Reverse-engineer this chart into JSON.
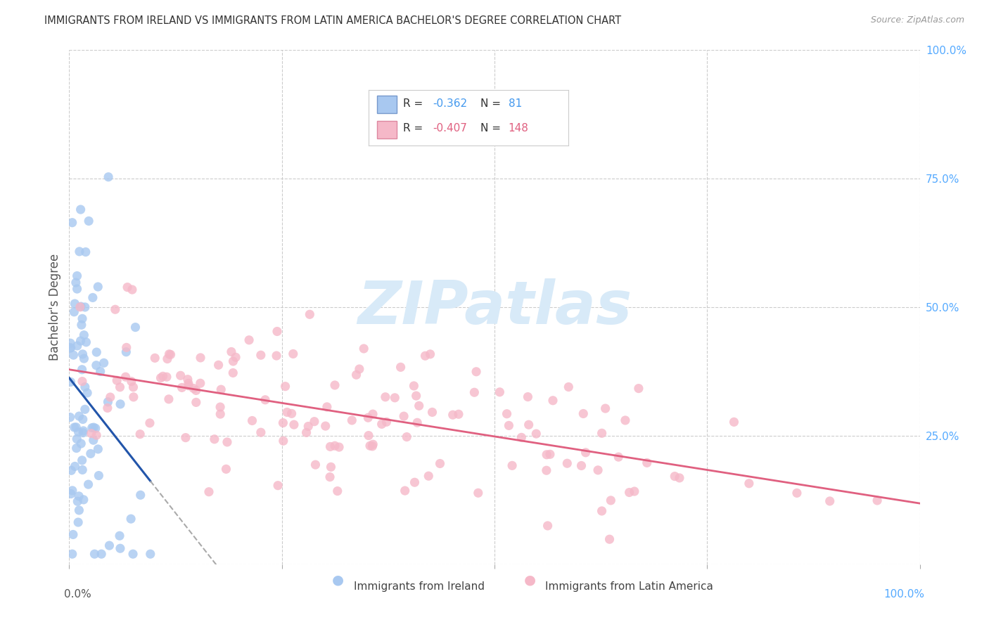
{
  "title": "IMMIGRANTS FROM IRELAND VS IMMIGRANTS FROM LATIN AMERICA BACHELOR'S DEGREE CORRELATION CHART",
  "source": "Source: ZipAtlas.com",
  "ylabel": "Bachelor's Degree",
  "legend_blue_R": "-0.362",
  "legend_blue_N": "81",
  "legend_pink_R": "-0.407",
  "legend_pink_N": "148",
  "blue_scatter_color": "#a8c8f0",
  "pink_scatter_color": "#f5b8c8",
  "blue_line_color": "#2255aa",
  "pink_line_color": "#e06080",
  "legend_blue_text": "#4499ee",
  "legend_pink_text": "#e06080",
  "watermark_color": "#d8eaf8",
  "background_color": "#ffffff",
  "grid_color": "#cccccc",
  "right_tick_color": "#55aaff",
  "title_color": "#333333",
  "source_color": "#999999",
  "ylabel_color": "#555555"
}
